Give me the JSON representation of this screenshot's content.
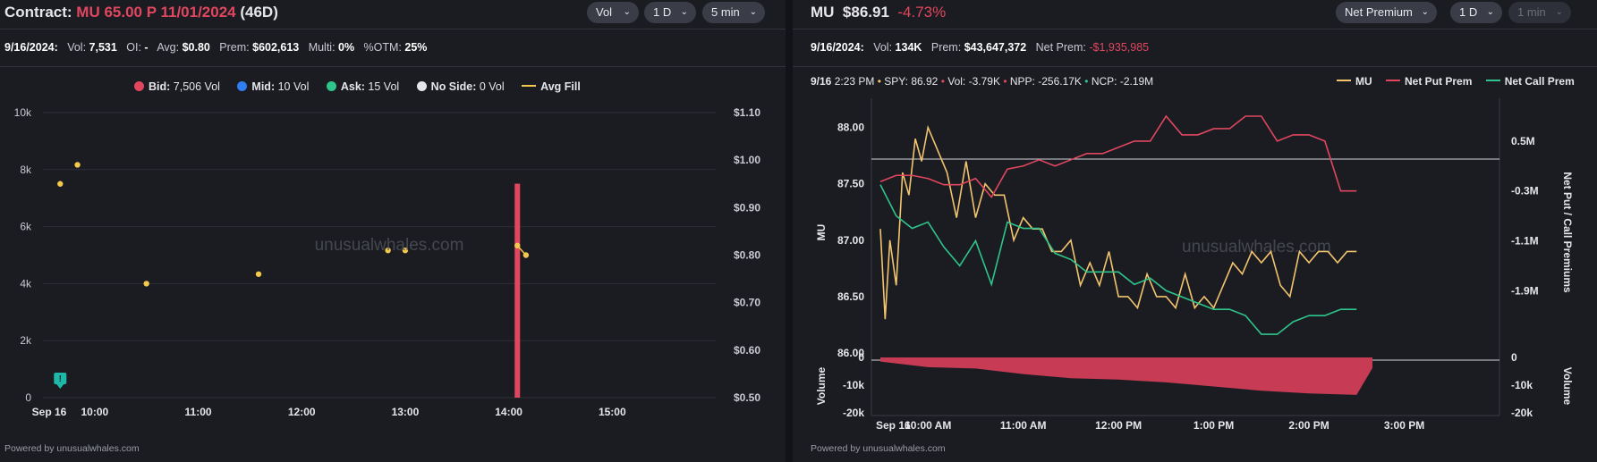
{
  "left": {
    "title_label": "Contract:",
    "contract": "MU 65.00 P 11/01/2024",
    "dte": "(46D)",
    "dropdowns": [
      {
        "label": "Vol",
        "disabled": false
      },
      {
        "label": "1 D",
        "disabled": false
      },
      {
        "label": "5 min",
        "disabled": false
      }
    ],
    "stats": {
      "date": "9/16/2024:",
      "vol_label": "Vol:",
      "vol": "7,531",
      "oi_label": "OI:",
      "oi": "-",
      "avg_label": "Avg:",
      "avg": "$0.80",
      "prem_label": "Prem:",
      "prem": "$602,613",
      "multi_label": "Multi:",
      "multi": "0%",
      "otm_label": "%OTM:",
      "otm": "25%"
    },
    "legend": [
      {
        "label": "Bid:",
        "value": "7,506 Vol",
        "color": "#e0475f",
        "icon": "filled-dot"
      },
      {
        "label": "Mid:",
        "value": "10 Vol",
        "color": "#2f7ff0",
        "icon": "filled-dot"
      },
      {
        "label": "Ask:",
        "value": "15 Vol",
        "color": "#2fc58a",
        "icon": "filled-dot"
      },
      {
        "label": "No Side:",
        "value": "0 Vol",
        "color": "#e6e6ea",
        "icon": "filled-dot"
      },
      {
        "label": "Avg Fill",
        "value": "",
        "color": "#f2c94c",
        "icon": "line-dot"
      }
    ],
    "watermark": "unusualwhales.com",
    "powered_by": "Powered by unusualwhales.com",
    "chart_data": {
      "type": "bar",
      "x_ticks": [
        "Sep 16",
        "10:00",
        "11:00",
        "12:00",
        "13:00",
        "14:00",
        "15:00"
      ],
      "y_left_ticks": [
        "0",
        "2k",
        "4k",
        "6k",
        "8k",
        "10k"
      ],
      "y_left_range": [
        0,
        10000
      ],
      "y_right_ticks": [
        "$0.50",
        "$0.60",
        "$0.70",
        "$0.80",
        "$0.90",
        "$1.00",
        "$1.10"
      ],
      "y_right_range": [
        0.5,
        1.1
      ],
      "volume_bars": [
        {
          "time": "14:05",
          "value": 7506,
          "side": "bid",
          "color": "#e0475f"
        }
      ],
      "avg_fill_points": [
        {
          "time": "09:40",
          "price": 0.95
        },
        {
          "time": "09:50",
          "price": 0.99
        },
        {
          "time": "10:30",
          "price": 0.74
        },
        {
          "time": "11:35",
          "price": 0.76
        },
        {
          "time": "12:50",
          "price": 0.81
        },
        {
          "time": "13:00",
          "price": 0.81
        },
        {
          "time": "14:05",
          "price": 0.82
        },
        {
          "time": "14:10",
          "price": 0.8
        }
      ],
      "alert_marker": {
        "time": "09:40",
        "icon": "alert-badge"
      },
      "grid": true
    }
  },
  "right": {
    "ticker": "MU",
    "price": "$86.91",
    "change": "-4.73%",
    "dropdowns": [
      {
        "label": "Net Premium",
        "disabled": false
      },
      {
        "label": "1 D",
        "disabled": false
      },
      {
        "label": "1 min",
        "disabled": true
      }
    ],
    "stats": {
      "date": "9/16/2024:",
      "vol_label": "Vol:",
      "vol": "134K",
      "prem_label": "Prem:",
      "prem": "$43,647,372",
      "netprem_label": "Net Prem:",
      "netprem": "-$1,935,985"
    },
    "crosshair": {
      "time": "9/16",
      "clock": "2:23 PM",
      "spy_label": "SPY:",
      "spy": "86.92",
      "vol_label": "Vol:",
      "vol": "-3.79K",
      "npp_label": "NPP:",
      "npp": "-256.17K",
      "ncp_label": "NCP:",
      "ncp": "-2.19M"
    },
    "legend": [
      {
        "label": "MU",
        "color": "#f2c46d"
      },
      {
        "label": "Net Put Prem",
        "color": "#e0475f"
      },
      {
        "label": "Net Call Prem",
        "color": "#2fc58a"
      }
    ],
    "watermark": "unusualwhales.com",
    "powered_by": "Powered by unusualwhales.com",
    "chart_data": {
      "type": "line",
      "x_ticks": [
        "Sep 16",
        "10:00 AM",
        "11:00 AM",
        "12:00 PM",
        "1:00 PM",
        "2:00 PM",
        "3:00 PM"
      ],
      "y_left_label": "MU",
      "y_left_ticks": [
        "86.00",
        "86.50",
        "87.00",
        "87.50",
        "88.00"
      ],
      "y_left_range": [
        86.0,
        88.1
      ],
      "y_right_label": "Net Put / Call Premiums",
      "y_right_ticks": [
        "0.5M",
        "-0.3M",
        "-1.1M",
        "-1.9M"
      ],
      "y_right_range": [
        -2.9,
        0.9
      ],
      "volume_label": "Volume",
      "volume_ticks": [
        "0",
        "-10k",
        "-20k"
      ],
      "volume_range": [
        -20000,
        0
      ],
      "series": [
        {
          "name": "MU",
          "color": "#f2c46d",
          "x_minutes": [
            0,
            3,
            6,
            10,
            14,
            18,
            22,
            26,
            30,
            36,
            42,
            48,
            54,
            60,
            66,
            72,
            78,
            84,
            90,
            96,
            102,
            108,
            114,
            120,
            126,
            132,
            138,
            144,
            150,
            156,
            162,
            168,
            174,
            180,
            186,
            192,
            198,
            204,
            210,
            216,
            222,
            228,
            234,
            240,
            246,
            252,
            258,
            264,
            270,
            276,
            282,
            288,
            294,
            300
          ],
          "values": [
            87.1,
            86.3,
            87.0,
            86.6,
            87.6,
            87.4,
            87.9,
            87.7,
            88.0,
            87.8,
            87.6,
            87.2,
            87.7,
            87.2,
            87.5,
            87.4,
            87.4,
            87.0,
            87.2,
            87.1,
            87.1,
            86.9,
            86.9,
            87.0,
            86.6,
            86.8,
            86.6,
            86.9,
            86.5,
            86.5,
            86.4,
            86.7,
            86.5,
            86.5,
            86.4,
            86.7,
            86.4,
            86.5,
            86.4,
            86.6,
            86.8,
            86.7,
            86.9,
            86.8,
            86.9,
            86.6,
            86.5,
            86.9,
            86.8,
            86.9,
            86.9,
            86.8,
            86.9,
            86.9
          ]
        },
        {
          "name": "Net Put Prem",
          "color": "#e0475f",
          "x_minutes": [
            0,
            10,
            20,
            30,
            40,
            50,
            60,
            70,
            80,
            90,
            100,
            110,
            120,
            130,
            140,
            150,
            160,
            170,
            180,
            190,
            200,
            210,
            220,
            230,
            240,
            250,
            260,
            270,
            280,
            290,
            300
          ],
          "values": [
            -0.15,
            -0.05,
            -0.05,
            -0.1,
            -0.2,
            -0.2,
            -0.1,
            -0.4,
            0.05,
            0.1,
            0.2,
            0.1,
            0.2,
            0.3,
            0.3,
            0.4,
            0.5,
            0.5,
            0.9,
            0.6,
            0.6,
            0.7,
            0.7,
            0.9,
            0.9,
            0.5,
            0.6,
            0.6,
            0.5,
            -0.3,
            -0.3
          ]
        },
        {
          "name": "Net Call Prem",
          "color": "#2fc58a",
          "x_minutes": [
            0,
            10,
            20,
            30,
            40,
            50,
            60,
            70,
            80,
            90,
            100,
            110,
            120,
            130,
            140,
            150,
            160,
            170,
            180,
            190,
            200,
            210,
            220,
            230,
            240,
            250,
            260,
            270,
            280,
            290,
            300
          ],
          "values": [
            -0.2,
            -0.7,
            -0.9,
            -0.8,
            -1.2,
            -1.5,
            -1.1,
            -1.8,
            -0.8,
            -0.9,
            -0.9,
            -1.3,
            -1.4,
            -1.6,
            -1.6,
            -1.6,
            -1.8,
            -1.7,
            -1.9,
            -2.0,
            -2.1,
            -2.2,
            -2.2,
            -2.3,
            -2.6,
            -2.6,
            -2.4,
            -2.3,
            -2.3,
            -2.2,
            -2.2
          ]
        },
        {
          "name": "Volume",
          "color": "#c73b55",
          "x_minutes": [
            0,
            30,
            60,
            90,
            120,
            150,
            180,
            210,
            240,
            270,
            300,
            310
          ],
          "values": [
            -1500,
            -3500,
            -4000,
            -6000,
            -7500,
            -8000,
            -9000,
            -10500,
            -12000,
            -13000,
            -13500,
            -3800
          ]
        }
      ],
      "grid": false
    }
  }
}
